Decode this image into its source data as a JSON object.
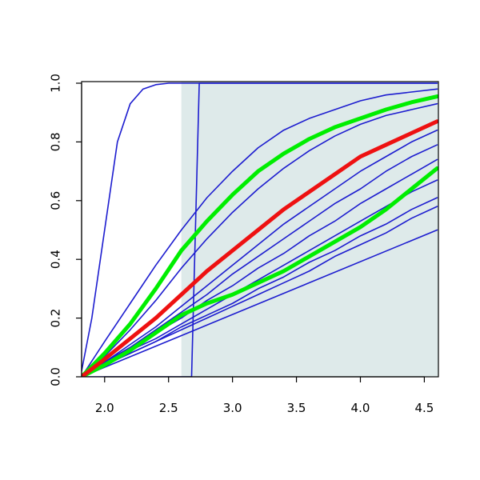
{
  "chart_data": {
    "type": "line",
    "xlim": [
      1.82,
      4.61
    ],
    "ylim": [
      0,
      1
    ],
    "xticks": [
      {
        "value": 2,
        "label": "2.0"
      },
      2.5,
      {
        "value": 3,
        "label": "3.0"
      },
      3.5,
      {
        "value": 4,
        "label": "4.0"
      },
      4.5
    ],
    "yticks": [
      {
        "value": 0,
        "label": "0.0"
      },
      0.2,
      0.4,
      0.6,
      0.8,
      {
        "value": 1,
        "label": "1.0"
      }
    ],
    "shade": {
      "x": [
        2.6,
        4.61
      ],
      "color": "#deeaea"
    },
    "x": [
      1.82,
      2.0,
      2.2,
      2.4,
      2.6,
      2.8,
      3.0,
      3.2,
      3.4,
      3.6,
      3.8,
      4.0,
      4.2,
      4.4,
      4.6
    ],
    "series": [
      {
        "color": "#1c1ccf",
        "linewidth": 1.6,
        "values": [
          0,
          0.12,
          0.25,
          0.38,
          0.5,
          0.61,
          0.7,
          0.78,
          0.84,
          0.88,
          0.91,
          0.94,
          0.96,
          0.97,
          0.98
        ]
      },
      {
        "color": "#1c1ccf",
        "linewidth": 1.6,
        "values": [
          0,
          0.07,
          0.16,
          0.26,
          0.37,
          0.47,
          0.56,
          0.64,
          0.71,
          0.77,
          0.82,
          0.86,
          0.89,
          0.91,
          0.93
        ]
      },
      {
        "color": "#1c1ccf",
        "linewidth": 1.6,
        "values": [
          0,
          0.05,
          0.11,
          0.17,
          0.24,
          0.31,
          0.38,
          0.45,
          0.52,
          0.58,
          0.64,
          0.7,
          0.75,
          0.8,
          0.84
        ]
      },
      {
        "color": "#1c1ccf",
        "linewidth": 1.6,
        "values": [
          0,
          0.05,
          0.1,
          0.16,
          0.22,
          0.28,
          0.35,
          0.41,
          0.47,
          0.53,
          0.59,
          0.64,
          0.7,
          0.75,
          0.79
        ]
      },
      {
        "color": "#1c1ccf",
        "linewidth": 1.6,
        "values": [
          0,
          0.05,
          0.1,
          0.15,
          0.2,
          0.26,
          0.31,
          0.37,
          0.42,
          0.48,
          0.53,
          0.59,
          0.64,
          0.69,
          0.74
        ]
      },
      {
        "color": "#1c1ccf",
        "linewidth": 1.6,
        "values": [
          0,
          0.04,
          0.09,
          0.13,
          0.18,
          0.23,
          0.28,
          0.33,
          0.38,
          0.43,
          0.48,
          0.53,
          0.58,
          0.63,
          0.67
        ]
      },
      {
        "color": "#1c1ccf",
        "linewidth": 1.6,
        "values": [
          0,
          0.04,
          0.08,
          0.12,
          0.17,
          0.21,
          0.25,
          0.3,
          0.34,
          0.39,
          0.43,
          0.48,
          0.52,
          0.57,
          0.61
        ]
      },
      {
        "color": "#1c1ccf",
        "linewidth": 1.6,
        "values": [
          0,
          0.04,
          0.08,
          0.12,
          0.16,
          0.2,
          0.24,
          0.28,
          0.32,
          0.36,
          0.41,
          0.45,
          0.49,
          0.54,
          0.58
        ]
      },
      {
        "color": "#1c1ccf",
        "linewidth": 1.6,
        "x": [
          1.82,
          4.6
        ],
        "values": [
          0,
          0.5
        ]
      },
      {
        "color": "#1c1ccf",
        "linewidth": 1.6,
        "x": [
          1.82,
          1.9,
          2.0,
          2.1,
          2.2,
          2.3,
          2.4,
          2.5,
          4.6
        ],
        "values": [
          0.02,
          0.2,
          0.5,
          0.8,
          0.93,
          0.98,
          0.995,
          1,
          1
        ]
      },
      {
        "color": "#1c1ccf",
        "linewidth": 1.6,
        "x": [
          1.82,
          2.68,
          2.71,
          2.74,
          4.6
        ],
        "values": [
          0,
          0,
          0.5,
          1,
          1
        ]
      },
      {
        "color": "#00ee00",
        "linewidth": 5,
        "values": [
          0,
          0.08,
          0.18,
          0.3,
          0.43,
          0.53,
          0.62,
          0.7,
          0.76,
          0.81,
          0.85,
          0.88,
          0.91,
          0.935,
          0.955
        ]
      },
      {
        "color": "#00ee00",
        "linewidth": 5,
        "values": [
          0,
          0.04,
          0.09,
          0.15,
          0.21,
          0.25,
          0.28,
          0.32,
          0.36,
          0.41,
          0.46,
          0.51,
          0.57,
          0.64,
          0.71
        ]
      },
      {
        "color": "#ee1111",
        "linewidth": 5,
        "values": [
          0,
          0.06,
          0.13,
          0.2,
          0.28,
          0.36,
          0.43,
          0.5,
          0.57,
          0.63,
          0.69,
          0.75,
          0.79,
          0.83,
          0.87
        ]
      }
    ]
  }
}
